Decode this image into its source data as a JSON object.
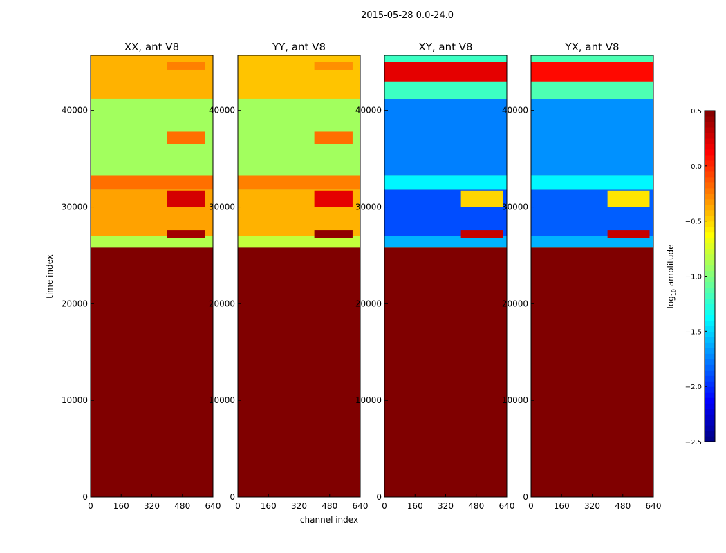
{
  "figure": {
    "suptitle": "2015-05-28 0.0-24.0",
    "xlabel": "channel index",
    "ylabel": "time index"
  },
  "colorbar": {
    "label_main": "log",
    "label_sub": "10",
    "label_rest": " amplitude",
    "range": [
      -2.5,
      0.5
    ],
    "ticks": [
      "0.5",
      "0.0",
      "−0.5",
      "−1.0",
      "−1.5",
      "−2.0",
      "−2.5"
    ],
    "tick_values": [
      0.5,
      0.0,
      -0.5,
      -1.0,
      -1.5,
      -2.0,
      -2.5
    ],
    "colormap": "jet"
  },
  "chart_data": [
    {
      "type": "heatmap",
      "title": "XX, ant V8",
      "xlabel": "channel index",
      "ylabel": "time index",
      "xlim": [
        0,
        640
      ],
      "ylim": [
        0,
        45700
      ],
      "xticks": [
        "0",
        "160",
        "320",
        "480",
        "640"
      ],
      "yticks": [
        "0",
        "10000",
        "20000",
        "30000",
        "40000"
      ],
      "background_value": -0.95,
      "bands": [
        {
          "y": [
            0,
            25800
          ],
          "value": 0.5
        },
        {
          "y": [
            25800,
            27000
          ],
          "value": -0.85
        },
        {
          "y": [
            27000,
            31800
          ],
          "value": -0.35
        },
        {
          "y": [
            31800,
            33300
          ],
          "value": -0.2
        },
        {
          "y": [
            33300,
            41200
          ],
          "value": -0.9
        },
        {
          "y": [
            41200,
            45700
          ],
          "value": -0.4
        }
      ],
      "hot_segments": [
        {
          "y": [
            30000,
            31700
          ],
          "x": [
            400,
            600
          ],
          "value": 0.25
        },
        {
          "y": [
            26800,
            27600
          ],
          "x": [
            400,
            600
          ],
          "value": 0.4
        },
        {
          "y": [
            36500,
            37800
          ],
          "x": [
            400,
            600
          ],
          "value": -0.2
        },
        {
          "y": [
            44200,
            45000
          ],
          "x": [
            400,
            600
          ],
          "value": -0.25
        }
      ]
    },
    {
      "type": "heatmap",
      "title": "YY, ant V8",
      "xlabel": "channel index",
      "ylabel": "time index",
      "xlim": [
        0,
        640
      ],
      "ylim": [
        0,
        45700
      ],
      "xticks": [
        "0",
        "160",
        "320",
        "480",
        "640"
      ],
      "yticks": [
        "0",
        "10000",
        "20000",
        "30000",
        "40000"
      ],
      "background_value": -0.95,
      "bands": [
        {
          "y": [
            0,
            25800
          ],
          "value": 0.5
        },
        {
          "y": [
            25800,
            27000
          ],
          "value": -0.8
        },
        {
          "y": [
            27000,
            31800
          ],
          "value": -0.4
        },
        {
          "y": [
            31800,
            33300
          ],
          "value": -0.25
        },
        {
          "y": [
            33300,
            41200
          ],
          "value": -0.9
        },
        {
          "y": [
            41200,
            45700
          ],
          "value": -0.45
        }
      ],
      "hot_segments": [
        {
          "y": [
            30000,
            31700
          ],
          "x": [
            400,
            600
          ],
          "value": 0.2
        },
        {
          "y": [
            26800,
            27600
          ],
          "x": [
            400,
            600
          ],
          "value": 0.45
        },
        {
          "y": [
            36500,
            37800
          ],
          "x": [
            400,
            600
          ],
          "value": -0.2
        },
        {
          "y": [
            44200,
            45000
          ],
          "x": [
            400,
            600
          ],
          "value": -0.3
        }
      ]
    },
    {
      "type": "heatmap",
      "title": "XY, ant V8",
      "xlabel": "channel index",
      "ylabel": "time index",
      "xlim": [
        0,
        640
      ],
      "ylim": [
        0,
        45700
      ],
      "xticks": [
        "0",
        "160",
        "320",
        "480",
        "640"
      ],
      "yticks": [
        "0",
        "10000",
        "20000",
        "30000",
        "40000"
      ],
      "background_value": -0.95,
      "bands": [
        {
          "y": [
            0,
            25800
          ],
          "value": 0.5
        },
        {
          "y": [
            25800,
            27000
          ],
          "value": -1.6
        },
        {
          "y": [
            27000,
            31800
          ],
          "value": -1.9
        },
        {
          "y": [
            31800,
            33300
          ],
          "value": -1.4
        },
        {
          "y": [
            33300,
            41200
          ],
          "value": -1.75
        },
        {
          "y": [
            41200,
            45700
          ],
          "value": -1.2
        }
      ],
      "hot_segments": [
        {
          "y": [
            26800,
            27600
          ],
          "x": [
            400,
            620
          ],
          "value": 0.3
        },
        {
          "y": [
            30000,
            31700
          ],
          "x": [
            400,
            620
          ],
          "value": -0.5
        },
        {
          "y": [
            43000,
            45000
          ],
          "x": [
            0,
            640
          ],
          "value": 0.2
        }
      ]
    },
    {
      "type": "heatmap",
      "title": "YX, ant V8",
      "xlabel": "channel index",
      "ylabel": "time index",
      "xlim": [
        0,
        640
      ],
      "ylim": [
        0,
        45700
      ],
      "xticks": [
        "0",
        "160",
        "320",
        "480",
        "640"
      ],
      "yticks": [
        "0",
        "10000",
        "20000",
        "30000",
        "40000"
      ],
      "background_value": -0.95,
      "bands": [
        {
          "y": [
            0,
            25800
          ],
          "value": 0.5
        },
        {
          "y": [
            25800,
            27000
          ],
          "value": -1.6
        },
        {
          "y": [
            27000,
            31800
          ],
          "value": -1.85
        },
        {
          "y": [
            31800,
            33300
          ],
          "value": -1.4
        },
        {
          "y": [
            33300,
            41200
          ],
          "value": -1.7
        },
        {
          "y": [
            41200,
            45700
          ],
          "value": -1.15
        }
      ],
      "hot_segments": [
        {
          "y": [
            26800,
            27600
          ],
          "x": [
            400,
            620
          ],
          "value": 0.3
        },
        {
          "y": [
            30000,
            31700
          ],
          "x": [
            400,
            620
          ],
          "value": -0.55
        },
        {
          "y": [
            43000,
            45000
          ],
          "x": [
            0,
            640
          ],
          "value": 0.1
        }
      ]
    }
  ]
}
